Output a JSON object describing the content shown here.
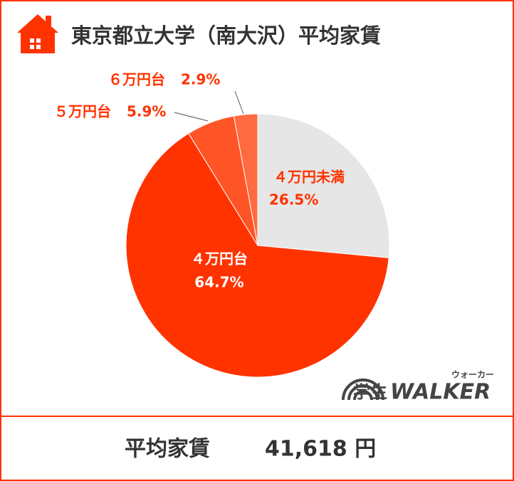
{
  "chart_data": {
    "type": "pie",
    "title": "東京都立大学（南大沢）平均家賃",
    "categories": [
      "４万円未満",
      "４万円台",
      "５万円台",
      "６万円台"
    ],
    "values": [
      26.5,
      64.7,
      5.9,
      2.9
    ],
    "value_labels": [
      "26.5%",
      "64.7%",
      "5.9%",
      "2.9%"
    ],
    "colors": [
      "#e6e6e6",
      "#ff3300",
      "#ff5526",
      "#ff6a40"
    ]
  },
  "logo": {
    "prefix": "学生",
    "brand": "WALKER",
    "reading": "ウォーカー"
  },
  "summary": {
    "label": "平均家賃",
    "value": "41,618 円"
  }
}
